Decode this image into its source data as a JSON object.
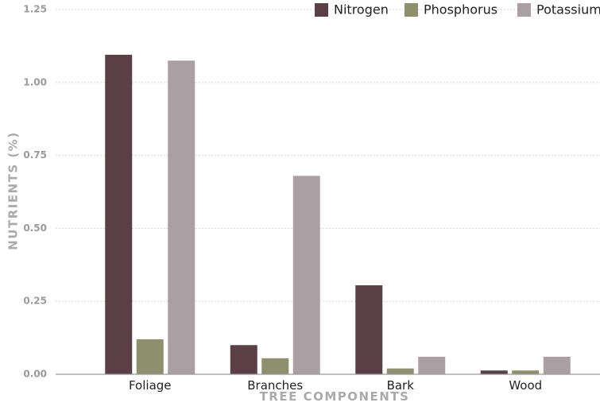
{
  "chart_data": {
    "type": "bar",
    "title": "",
    "xlabel": "TREE COMPONENTS",
    "ylabel": "NUTRIENTS (%)",
    "categories": [
      "Foliage",
      "Branches",
      "Bark",
      "Wood"
    ],
    "series": [
      {
        "name": "Nitrogen",
        "color": "#5a3f47",
        "values": [
          1.095,
          0.1,
          0.305,
          0.013
        ]
      },
      {
        "name": "Phosphorus",
        "color": "#8e8f6c",
        "values": [
          0.12,
          0.055,
          0.02,
          0.013
        ]
      },
      {
        "name": "Potassium",
        "color": "#aa9fa3",
        "values": [
          1.075,
          0.68,
          0.06,
          0.06
        ]
      }
    ],
    "ylim": [
      0,
      1.25
    ],
    "yticks": [
      "0.00",
      "0.25",
      "0.50",
      "0.75",
      "1.00",
      "1.25"
    ],
    "grid": true,
    "legend_position": "top-right"
  }
}
